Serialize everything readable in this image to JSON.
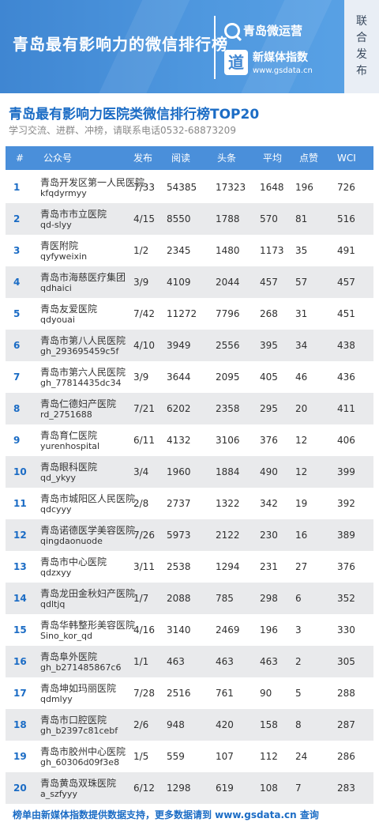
{
  "banner": {
    "title": "青岛最有影响力的微信排行榜",
    "brand": "青岛微运营",
    "gs_name": "新媒体指数",
    "gs_url": "www.gsdata.cn",
    "gs_logo_char": "道",
    "side_tag": "联合发布"
  },
  "section": {
    "title": "青岛最有影响力医院类微信排行榜TOP20",
    "subtitle": "学习交流、进群、冲榜，请联系电话0532-68873209"
  },
  "table": {
    "headers": {
      "rank": "#",
      "account": "公众号",
      "published": "发布",
      "reads": "阅读",
      "headline": "头条",
      "average": "平均",
      "likes": "点赞",
      "wci": "WCI"
    },
    "rows": [
      {
        "rank": "1",
        "name": "青岛开发区第一人民医院",
        "id": "kfqdyrmyy",
        "published": "7/33",
        "reads": "54385",
        "headline": "17323",
        "average": "1648",
        "likes": "196",
        "wci": "726"
      },
      {
        "rank": "2",
        "name": "青岛市市立医院",
        "id": "qd-slyy",
        "published": "4/15",
        "reads": "8550",
        "headline": "1788",
        "average": "570",
        "likes": "81",
        "wci": "516"
      },
      {
        "rank": "3",
        "name": "青医附院",
        "id": "qyfyweixin",
        "published": "1/2",
        "reads": "2345",
        "headline": "1480",
        "average": "1173",
        "likes": "35",
        "wci": "491"
      },
      {
        "rank": "4",
        "name": "青岛市海慈医疗集团",
        "id": "qdhaici",
        "published": "3/9",
        "reads": "4109",
        "headline": "2044",
        "average": "457",
        "likes": "57",
        "wci": "457"
      },
      {
        "rank": "5",
        "name": "青岛友爱医院",
        "id": "qdyouai",
        "published": "7/42",
        "reads": "11272",
        "headline": "7796",
        "average": "268",
        "likes": "31",
        "wci": "451"
      },
      {
        "rank": "6",
        "name": "青岛市第八人民医院",
        "id": "gh_293695459c5f",
        "published": "4/10",
        "reads": "3949",
        "headline": "2556",
        "average": "395",
        "likes": "34",
        "wci": "438"
      },
      {
        "rank": "7",
        "name": "青岛市第六人民医院",
        "id": "gh_77814435dc34",
        "published": "3/9",
        "reads": "3644",
        "headline": "2095",
        "average": "405",
        "likes": "46",
        "wci": "436"
      },
      {
        "rank": "8",
        "name": "青岛仁德妇产医院",
        "id": "rd_2751688",
        "published": "7/21",
        "reads": "6202",
        "headline": "2358",
        "average": "295",
        "likes": "20",
        "wci": "411"
      },
      {
        "rank": "9",
        "name": "青岛育仁医院",
        "id": "yurenhospital",
        "published": "6/11",
        "reads": "4132",
        "headline": "3106",
        "average": "376",
        "likes": "12",
        "wci": "406"
      },
      {
        "rank": "10",
        "name": "青岛眼科医院",
        "id": "qd_ykyy",
        "published": "3/4",
        "reads": "1960",
        "headline": "1884",
        "average": "490",
        "likes": "12",
        "wci": "399"
      },
      {
        "rank": "11",
        "name": "青岛市城阳区人民医院",
        "id": "qdcyyy",
        "published": "2/8",
        "reads": "2737",
        "headline": "1322",
        "average": "342",
        "likes": "19",
        "wci": "392"
      },
      {
        "rank": "12",
        "name": "青岛诺德医学美容医院",
        "id": "qingdaonuode",
        "published": "7/26",
        "reads": "5973",
        "headline": "2122",
        "average": "230",
        "likes": "16",
        "wci": "389"
      },
      {
        "rank": "13",
        "name": "青岛市中心医院",
        "id": "qdzxyy",
        "published": "3/11",
        "reads": "2538",
        "headline": "1294",
        "average": "231",
        "likes": "27",
        "wci": "376"
      },
      {
        "rank": "14",
        "name": "青岛龙田金秋妇产医院",
        "id": "qdltjq",
        "published": "1/7",
        "reads": "2088",
        "headline": "785",
        "average": "298",
        "likes": "6",
        "wci": "352"
      },
      {
        "rank": "15",
        "name": "青岛华韩整形美容医院",
        "id": "Sino_kor_qd",
        "published": "4/16",
        "reads": "3140",
        "headline": "2469",
        "average": "196",
        "likes": "3",
        "wci": "330"
      },
      {
        "rank": "16",
        "name": "青岛阜外医院",
        "id": "gh_b271485867c6",
        "published": "1/1",
        "reads": "463",
        "headline": "463",
        "average": "463",
        "likes": "2",
        "wci": "305"
      },
      {
        "rank": "17",
        "name": "青岛坤如玛丽医院",
        "id": "qdmlyy",
        "published": "7/28",
        "reads": "2516",
        "headline": "761",
        "average": "90",
        "likes": "5",
        "wci": "288"
      },
      {
        "rank": "18",
        "name": "青岛市口腔医院",
        "id": "gh_b2397c81cebf",
        "published": "2/6",
        "reads": "948",
        "headline": "420",
        "average": "158",
        "likes": "8",
        "wci": "287"
      },
      {
        "rank": "19",
        "name": "青岛市胶州中心医院",
        "id": "gh_60306d09f3e8",
        "published": "1/5",
        "reads": "559",
        "headline": "107",
        "average": "112",
        "likes": "24",
        "wci": "286"
      },
      {
        "rank": "20",
        "name": "青岛黄岛双珠医院",
        "id": "a_szfyyy",
        "published": "6/12",
        "reads": "1298",
        "headline": "619",
        "average": "108",
        "likes": "7",
        "wci": "283"
      }
    ]
  },
  "footer": {
    "text": "榜单由新媒体指数提供数据支持，更多数据请到 www.gsdata.cn 查询"
  },
  "colors": {
    "banner_blue": "#4a8fda",
    "title_blue": "#1b6cc5",
    "row_stripe": "#e9eaec"
  }
}
